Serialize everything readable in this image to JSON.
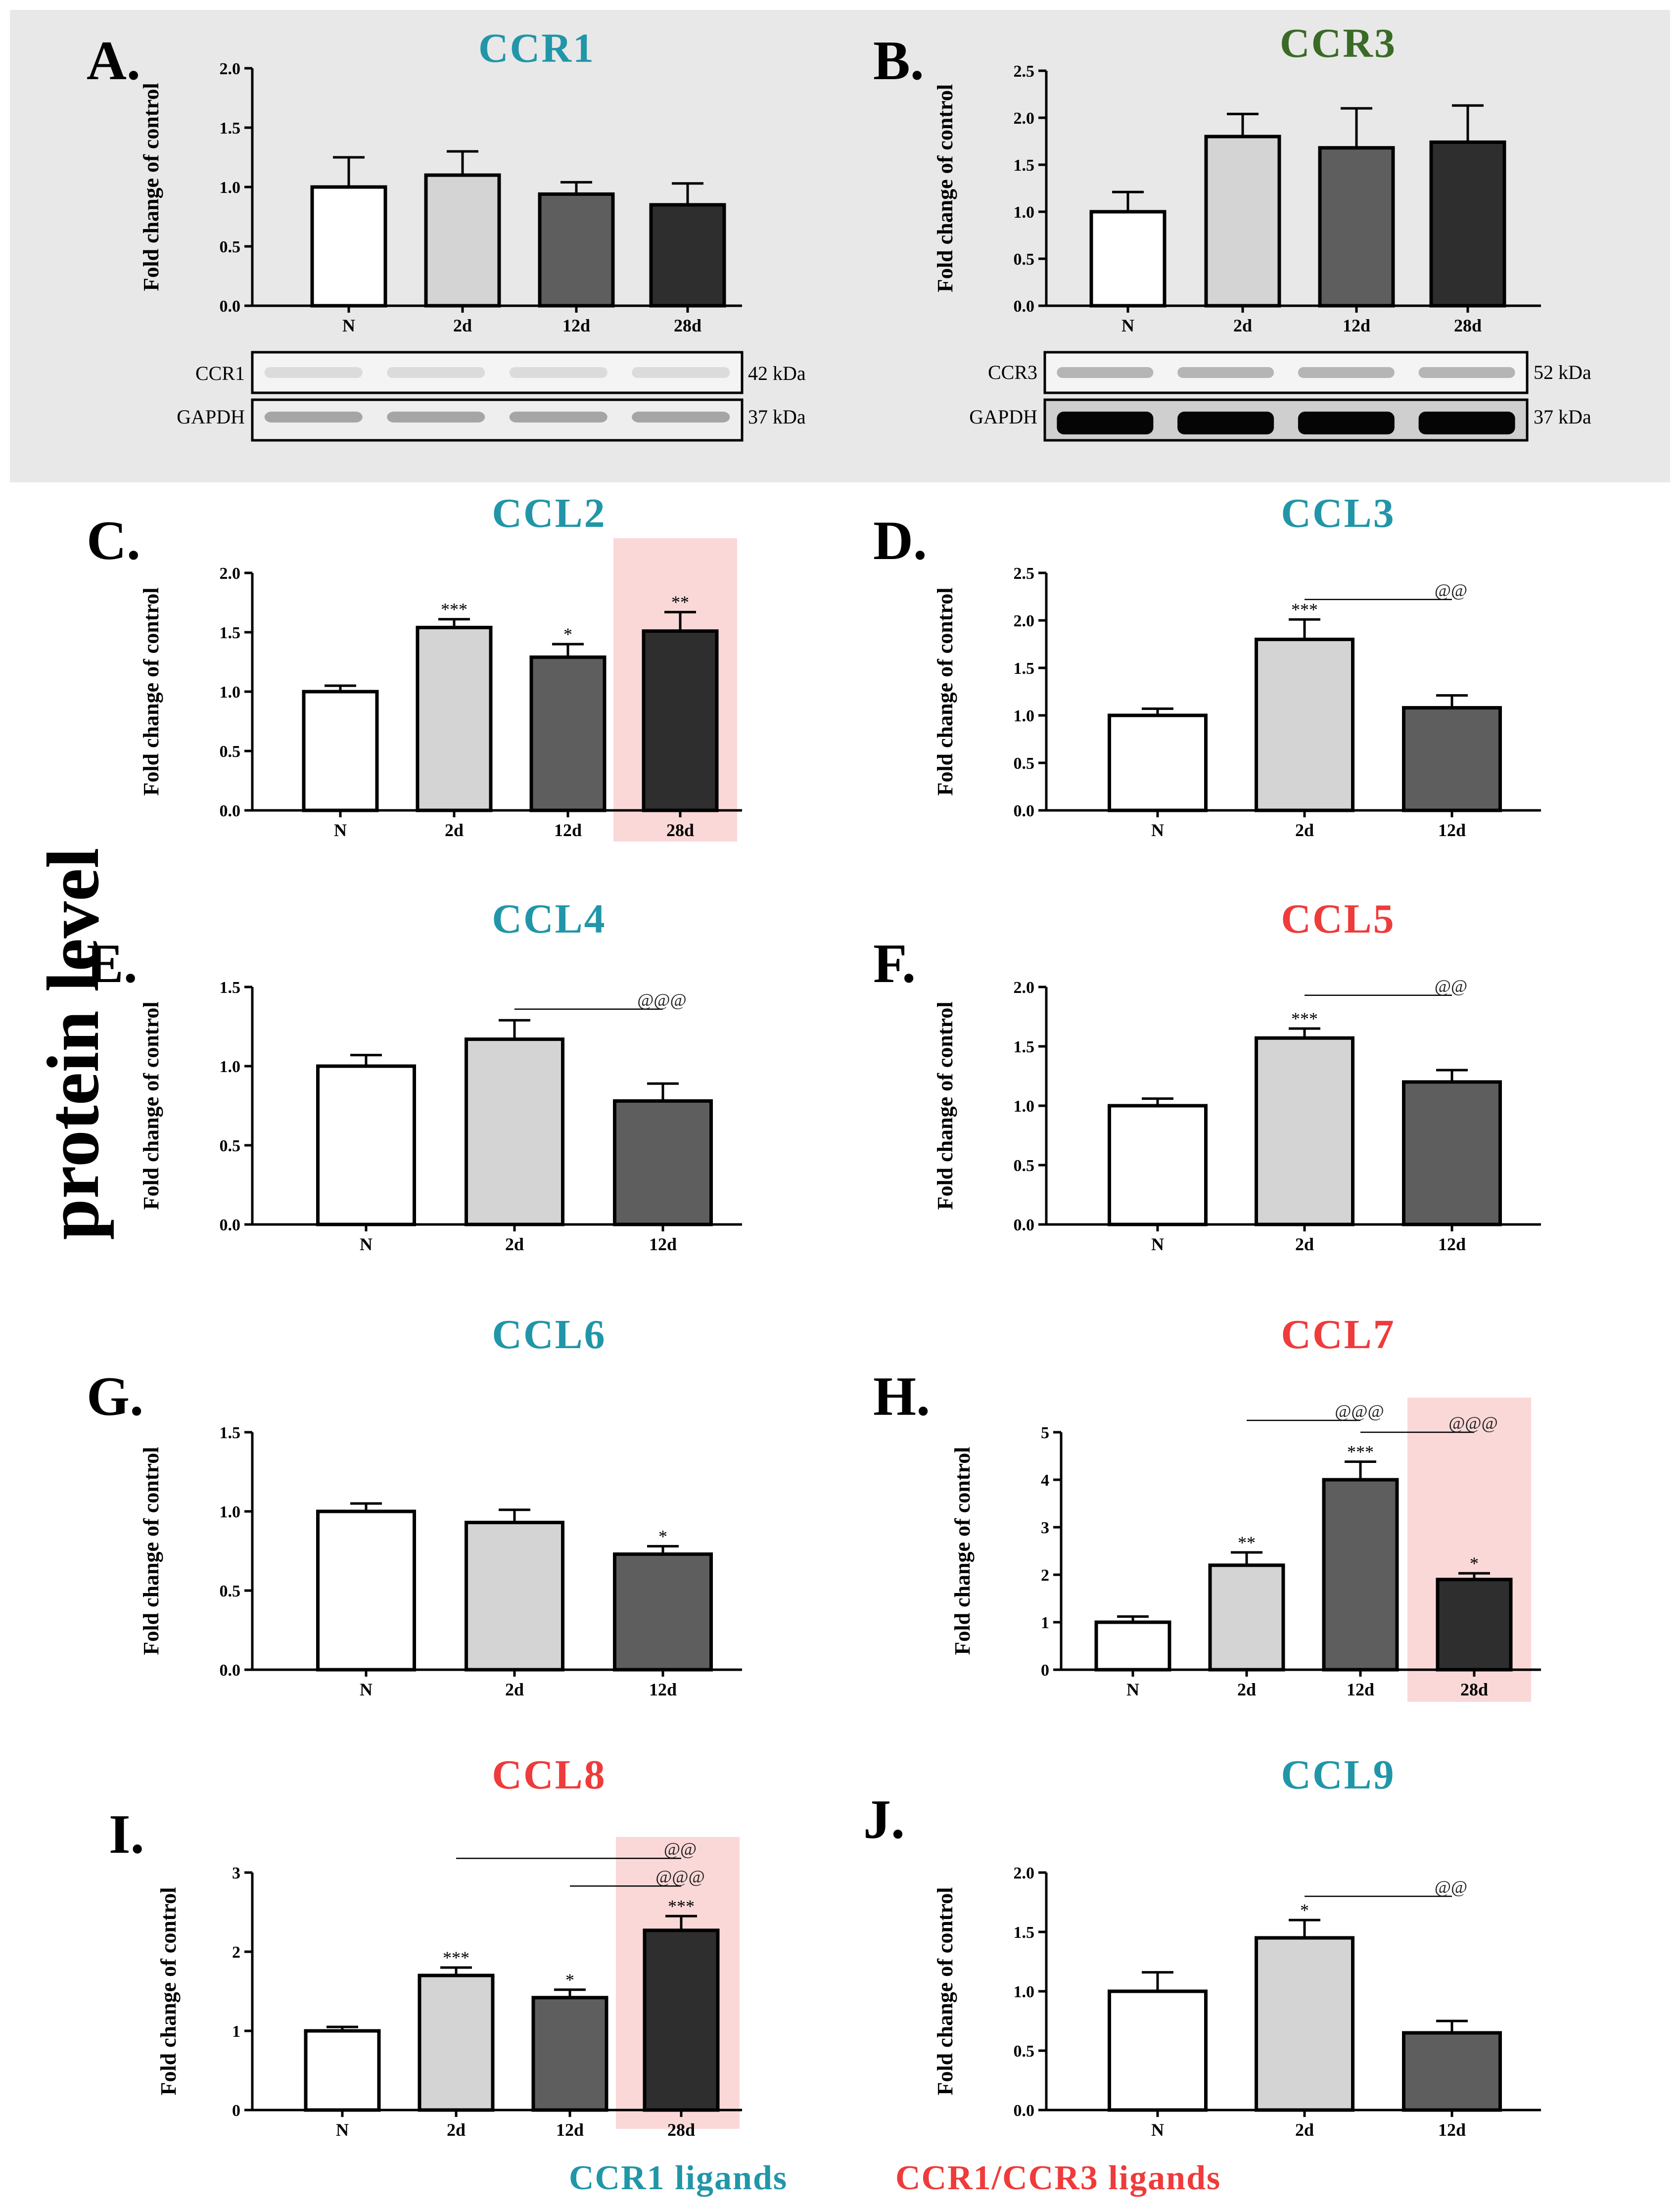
{
  "figure": {
    "side_label": "protein level",
    "legend": [
      {
        "text": "CCR1 ligands",
        "color": "#2196a8"
      },
      {
        "text": "CCR1/CCR3 ligands",
        "color": "#ef3b3b"
      }
    ],
    "colors": {
      "teal": "#2196a8",
      "red": "#ef3b3b",
      "green": "#3a6b26",
      "highlight": "#fbd8d8",
      "gray_box": "#e8e8e8"
    }
  },
  "chart_data": [
    {
      "panel": "A.",
      "title": "CCR1",
      "title_color": "#2196a8",
      "type": "bar",
      "ylabel": "Fold change of control",
      "categories": [
        "N",
        "2d",
        "12d",
        "28d"
      ],
      "values": [
        1.0,
        1.1,
        0.94,
        0.85
      ],
      "errors": [
        0.25,
        0.2,
        0.1,
        0.18
      ],
      "ylim": [
        0,
        2.0
      ],
      "yticks": [
        "0.0",
        "0.5",
        "1.0",
        "1.5",
        "2.0"
      ],
      "stars": [
        "",
        "",
        "",
        ""
      ],
      "comparisons": [],
      "highlight": null,
      "blot": {
        "rows": [
          "CCR1",
          "GAPDH"
        ],
        "kda": [
          "42 kDa",
          "37 kDa"
        ]
      }
    },
    {
      "panel": "B.",
      "title": "CCR3",
      "title_color": "#3a6b26",
      "type": "bar",
      "ylabel": "Fold change of control",
      "categories": [
        "N",
        "2d",
        "12d",
        "28d"
      ],
      "values": [
        1.0,
        1.8,
        1.68,
        1.74
      ],
      "errors": [
        0.21,
        0.24,
        0.42,
        0.39
      ],
      "ylim": [
        0,
        2.5
      ],
      "yticks": [
        "0.0",
        "0.5",
        "1.0",
        "1.5",
        "2.0",
        "2.5"
      ],
      "stars": [
        "",
        "",
        "",
        ""
      ],
      "comparisons": [],
      "highlight": null,
      "blot": {
        "rows": [
          "CCR3",
          "GAPDH"
        ],
        "kda": [
          "52 kDa",
          "37 kDa"
        ]
      }
    },
    {
      "panel": "C.",
      "title": "CCL2",
      "title_color": "#2196a8",
      "type": "bar",
      "ylabel": "Fold change of control",
      "categories": [
        "N",
        "2d",
        "12d",
        "28d"
      ],
      "values": [
        1.0,
        1.54,
        1.29,
        1.51
      ],
      "errors": [
        0.05,
        0.07,
        0.11,
        0.16
      ],
      "ylim": [
        0,
        2.0
      ],
      "yticks": [
        "0.0",
        "0.5",
        "1.0",
        "1.5",
        "2.0"
      ],
      "stars": [
        "",
        "***",
        "*",
        "**"
      ],
      "comparisons": [],
      "highlight": 3
    },
    {
      "panel": "D.",
      "title": "CCL3",
      "title_color": "#2196a8",
      "type": "bar",
      "ylabel": "Fold change of control",
      "categories": [
        "N",
        "2d",
        "12d"
      ],
      "values": [
        1.0,
        1.8,
        1.08
      ],
      "errors": [
        0.07,
        0.21,
        0.13
      ],
      "ylim": [
        0,
        2.5
      ],
      "yticks": [
        "0.0",
        "0.5",
        "1.0",
        "1.5",
        "2.0",
        "2.5"
      ],
      "stars": [
        "",
        "***",
        ""
      ],
      "comparisons": [
        {
          "from": 1,
          "to": 2,
          "y": 2.22,
          "label": "@@"
        }
      ],
      "highlight": null
    },
    {
      "panel": "E.",
      "title": "CCL4",
      "title_color": "#2196a8",
      "type": "bar",
      "ylabel": "Fold change of control",
      "categories": [
        "N",
        "2d",
        "12d"
      ],
      "values": [
        1.0,
        1.17,
        0.78
      ],
      "errors": [
        0.07,
        0.12,
        0.11
      ],
      "ylim": [
        0,
        1.5
      ],
      "yticks": [
        "0.0",
        "0.5",
        "1.0",
        "1.5"
      ],
      "stars": [
        "",
        "",
        ""
      ],
      "comparisons": [
        {
          "from": 1,
          "to": 2,
          "y": 1.36,
          "label": "@@@"
        }
      ],
      "highlight": null
    },
    {
      "panel": "F.",
      "title": "CCL5",
      "title_color": "#ef3b3b",
      "type": "bar",
      "ylabel": "Fold change of control",
      "categories": [
        "N",
        "2d",
        "12d"
      ],
      "values": [
        1.0,
        1.57,
        1.2
      ],
      "errors": [
        0.06,
        0.08,
        0.1
      ],
      "ylim": [
        0,
        2.0
      ],
      "yticks": [
        "0.0",
        "0.5",
        "1.0",
        "1.5",
        "2.0"
      ],
      "stars": [
        "",
        "***",
        ""
      ],
      "comparisons": [
        {
          "from": 1,
          "to": 2,
          "y": 1.93,
          "label": "@@"
        }
      ],
      "highlight": null
    },
    {
      "panel": "G.",
      "title": "CCL6",
      "title_color": "#2196a8",
      "type": "bar",
      "ylabel": "Fold change of control",
      "categories": [
        "N",
        "2d",
        "12d"
      ],
      "values": [
        1.0,
        0.93,
        0.73
      ],
      "errors": [
        0.05,
        0.08,
        0.05
      ],
      "ylim": [
        0,
        1.5
      ],
      "yticks": [
        "0.0",
        "0.5",
        "1.0",
        "1.5"
      ],
      "stars": [
        "",
        "",
        "*"
      ],
      "comparisons": [],
      "highlight": null
    },
    {
      "panel": "H.",
      "title": "CCL7",
      "title_color": "#ef3b3b",
      "type": "bar",
      "ylabel": "Fold change of control",
      "categories": [
        "N",
        "2d",
        "12d",
        "28d"
      ],
      "values": [
        1.0,
        2.2,
        4.0,
        1.9
      ],
      "errors": [
        0.12,
        0.27,
        0.38,
        0.13
      ],
      "ylim": [
        0,
        5
      ],
      "yticks": [
        "0",
        "1",
        "2",
        "3",
        "4",
        "5"
      ],
      "stars": [
        "",
        "**",
        "***",
        "*"
      ],
      "comparisons": [
        {
          "from": 1,
          "to": 2,
          "y": 5.25,
          "label": "@@@"
        },
        {
          "from": 2,
          "to": 3,
          "y": 5.0,
          "label": "@@@"
        }
      ],
      "highlight": 3
    },
    {
      "panel": "I.",
      "title": "CCL8",
      "title_color": "#ef3b3b",
      "type": "bar",
      "ylabel": "Fold change of control",
      "categories": [
        "N",
        "2d",
        "12d",
        "28d"
      ],
      "values": [
        1.0,
        1.7,
        1.42,
        2.27
      ],
      "errors": [
        0.05,
        0.1,
        0.1,
        0.18
      ],
      "ylim": [
        0,
        3
      ],
      "yticks": [
        "0",
        "1",
        "2",
        "3"
      ],
      "stars": [
        "",
        "***",
        "*",
        "***"
      ],
      "comparisons": [
        {
          "from": 1,
          "to": 3,
          "y": 3.18,
          "label": "@@"
        },
        {
          "from": 2,
          "to": 3,
          "y": 2.83,
          "label": "@@@"
        }
      ],
      "highlight": 3
    },
    {
      "panel": "J.",
      "title": "CCL9",
      "title_color": "#2196a8",
      "type": "bar",
      "ylabel": "Fold change of control",
      "categories": [
        "N",
        "2d",
        "12d"
      ],
      "values": [
        1.0,
        1.45,
        0.65
      ],
      "errors": [
        0.16,
        0.15,
        0.1
      ],
      "ylim": [
        0,
        2.0
      ],
      "yticks": [
        "0.0",
        "0.5",
        "1.0",
        "1.5",
        "2.0"
      ],
      "stars": [
        "",
        "*",
        ""
      ],
      "comparisons": [
        {
          "from": 1,
          "to": 2,
          "y": 1.8,
          "label": "@@"
        }
      ],
      "highlight": null
    }
  ]
}
